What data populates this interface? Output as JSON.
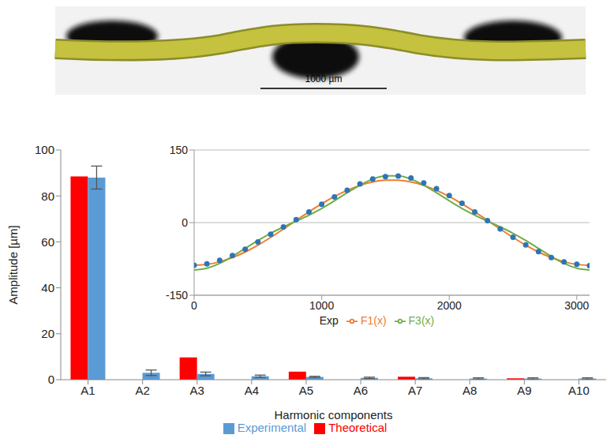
{
  "image": {
    "scale_bar": "1000 µm"
  },
  "chart_data": [
    {
      "type": "bar",
      "categories": [
        "A1",
        "A2",
        "A3",
        "A4",
        "A5",
        "A6",
        "A7",
        "A8",
        "A9",
        "A10"
      ],
      "series": [
        {
          "name": "Theoretical",
          "color": "#ff0000",
          "values": [
            88.5,
            0,
            9.7,
            0,
            3.5,
            0,
            1.3,
            0,
            0.6,
            0
          ]
        },
        {
          "name": "Experimental",
          "color": "#5b9bd5",
          "values": [
            88,
            3.0,
            2.5,
            1.5,
            1.2,
            0.8,
            0.6,
            0.5,
            0.5,
            0.5
          ],
          "error": [
            5,
            1.2,
            0.8,
            0.5,
            0.3,
            0.3,
            0.3,
            0.3,
            0.3,
            0.3
          ]
        }
      ],
      "x_label": "Harmonic components",
      "y_label": "Amplitude [µm]",
      "ylim": [
        0,
        100
      ],
      "yticks": [
        0,
        20,
        40,
        60,
        80,
        100
      ],
      "grid": false,
      "legend": "bottom"
    },
    {
      "type": "line",
      "x": [
        0,
        100,
        200,
        300,
        400,
        500,
        600,
        700,
        800,
        900,
        1000,
        1100,
        1200,
        1300,
        1400,
        1500,
        1600,
        1700,
        1800,
        1900,
        2000,
        2100,
        2200,
        2300,
        2400,
        2500,
        2600,
        2700,
        2800,
        2900,
        3000,
        3100
      ],
      "series": [
        {
          "name": "Exp",
          "color": "#2e75b6",
          "marker": "circle",
          "line_style": "none",
          "values": [
            -88,
            -85,
            -78,
            -68,
            -55,
            -40,
            -24,
            -9,
            6,
            22,
            38,
            53,
            67,
            80,
            90,
            95,
            96,
            92,
            82,
            70,
            56,
            40,
            22,
            4,
            -13,
            -30,
            -46,
            -60,
            -72,
            -81,
            -86,
            -89
          ]
        },
        {
          "name": "F1(x)",
          "color": "#ed7d31",
          "line_style": "solid",
          "values": [
            -88,
            -86.2,
            -80.9,
            -72.2,
            -60.7,
            -46.6,
            -30.6,
            -13.3,
            4.5,
            22.1,
            38.8,
            53.9,
            66.7,
            76.9,
            84.0,
            87.5,
            87.5,
            84.0,
            76.9,
            66.7,
            53.9,
            38.8,
            22.1,
            4.5,
            -13.3,
            -30.6,
            -46.6,
            -60.7,
            -72.2,
            -80.9,
            -86.2,
            -88
          ]
        },
        {
          "name": "F3(x)",
          "color": "#70ad47",
          "line_style": "solid",
          "values": [
            -97.7,
            -94.2,
            -84.3,
            -69.8,
            -53.3,
            -37.0,
            -22.1,
            -9.0,
            3.0,
            15.4,
            29.3,
            45.0,
            61.6,
            77.4,
            89.9,
            96.8,
            96.8,
            89.9,
            77.4,
            61.6,
            45.0,
            29.3,
            15.4,
            3.0,
            -9.0,
            -22.1,
            -37.0,
            -53.3,
            -69.8,
            -84.3,
            -94.2,
            -97.7
          ]
        }
      ],
      "xlim": [
        0,
        3100
      ],
      "xticks": [
        0,
        1000,
        2000,
        3000
      ],
      "ylim": [
        -150,
        150
      ],
      "yticks": [
        -150,
        0,
        150
      ],
      "grid": true,
      "legend": "bottom"
    }
  ]
}
